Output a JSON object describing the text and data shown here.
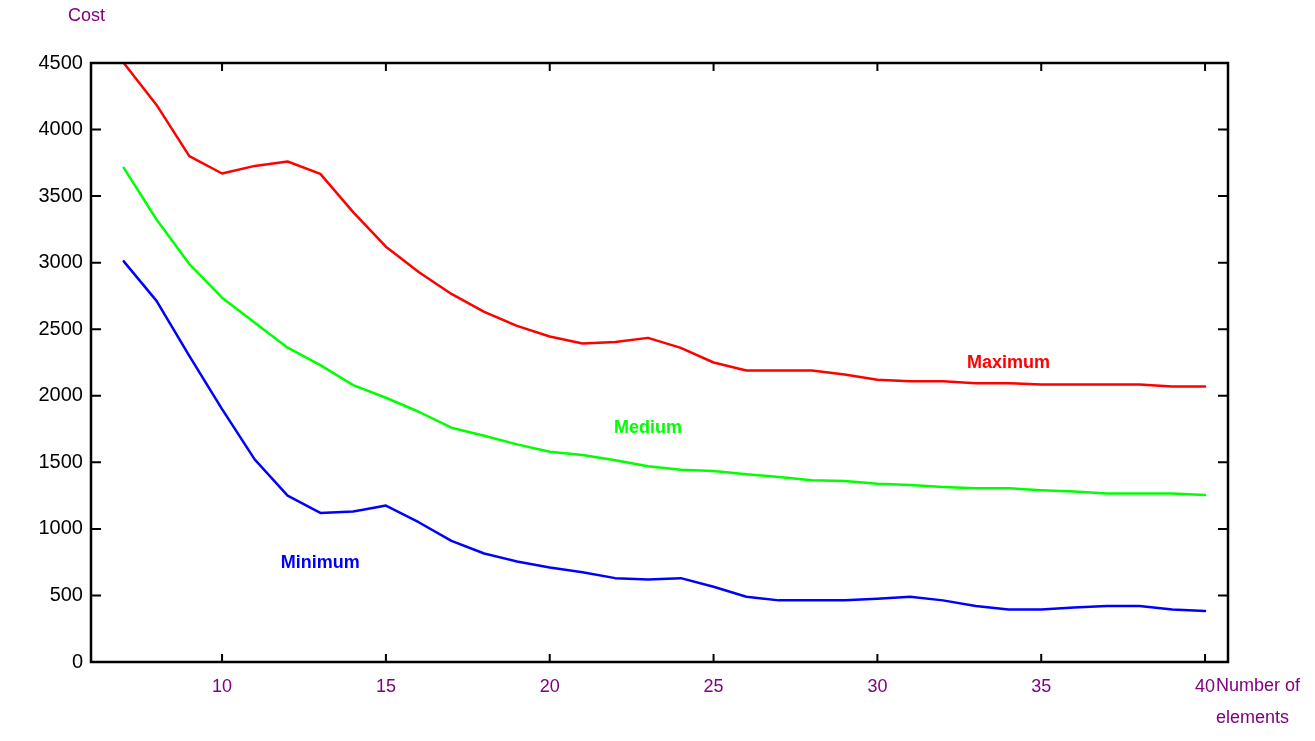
{
  "chart_data": {
    "type": "line",
    "xlabel": "Number of elements",
    "ylabel": "Cost",
    "x": [
      7,
      8,
      9,
      10,
      11,
      12,
      13,
      14,
      15,
      16,
      17,
      18,
      19,
      20,
      21,
      22,
      23,
      24,
      25,
      26,
      27,
      28,
      29,
      30,
      31,
      32,
      33,
      34,
      35,
      36,
      37,
      38,
      39,
      40
    ],
    "xlim": [
      6,
      40.7
    ],
    "xticks": [
      10,
      15,
      20,
      25,
      30,
      35,
      40
    ],
    "ylim": [
      0,
      4500
    ],
    "yticks": [
      0,
      500,
      1000,
      1500,
      2000,
      2500,
      3000,
      3500,
      4000,
      4500
    ],
    "grid": false,
    "legend": false,
    "marker": "none",
    "line_style": "solid",
    "series": [
      {
        "name": "Maximum",
        "color": "#ff0000",
        "values": [
          4500,
          4185,
          3800,
          3670,
          3727,
          3760,
          3667,
          3380,
          3120,
          2930,
          2765,
          2630,
          2525,
          2445,
          2393,
          2404,
          2435,
          2360,
          2250,
          2190,
          2190,
          2190,
          2160,
          2120,
          2110,
          2110,
          2095,
          2095,
          2085,
          2085,
          2085,
          2085,
          2070,
          2070
        ]
      },
      {
        "name": "Medium",
        "color": "#00ff00",
        "values": [
          3712,
          3324,
          2990,
          2737,
          2549,
          2361,
          2230,
          2080,
          1985,
          1880,
          1760,
          1700,
          1635,
          1580,
          1555,
          1515,
          1470,
          1445,
          1435,
          1410,
          1390,
          1365,
          1360,
          1340,
          1330,
          1315,
          1305,
          1305,
          1290,
          1280,
          1265,
          1265,
          1265,
          1255
        ]
      },
      {
        "name": "Minimum",
        "color": "#0000ff",
        "values": [
          3010,
          2713,
          2300,
          1900,
          1520,
          1250,
          1120,
          1130,
          1175,
          1050,
          910,
          815,
          755,
          710,
          675,
          630,
          620,
          630,
          565,
          490,
          463,
          463,
          463,
          475,
          490,
          463,
          420,
          394,
          394,
          409,
          420,
          420,
          394,
          383
        ]
      }
    ]
  }
}
